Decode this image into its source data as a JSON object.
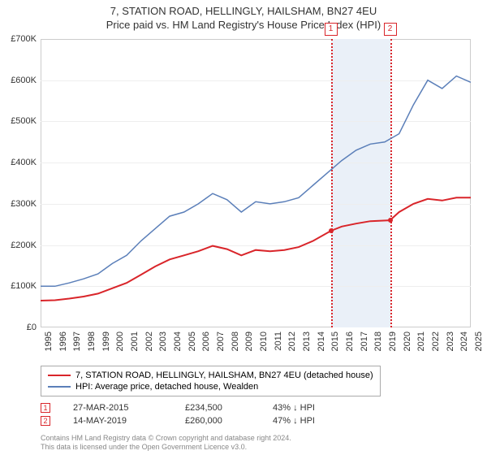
{
  "title_line1": "7, STATION ROAD, HELLINGLY, HAILSHAM, BN27 4EU",
  "title_line2": "Price paid vs. HM Land Registry's House Price Index (HPI)",
  "chart": {
    "type": "line",
    "background_color": "#ffffff",
    "grid_color": "#eeeeee",
    "border_color": "#cccccc",
    "x": {
      "min": 1995,
      "max": 2025,
      "ticks": [
        1995,
        1996,
        1997,
        1998,
        1999,
        2000,
        2001,
        2002,
        2003,
        2004,
        2005,
        2006,
        2007,
        2008,
        2009,
        2010,
        2011,
        2012,
        2013,
        2014,
        2015,
        2016,
        2017,
        2018,
        2019,
        2020,
        2021,
        2022,
        2023,
        2024,
        2025
      ]
    },
    "y": {
      "min": 0,
      "max": 700000,
      "ticks": [
        0,
        100000,
        200000,
        300000,
        400000,
        500000,
        600000,
        700000
      ],
      "tick_labels": [
        "£0",
        "£100K",
        "£200K",
        "£300K",
        "£400K",
        "£500K",
        "£600K",
        "£700K"
      ]
    },
    "band": {
      "from": 2015.24,
      "to": 2019.37,
      "color": "#eaf0f8"
    },
    "vlines": [
      {
        "x": 2015.24,
        "color": "#d9252a",
        "label": "1"
      },
      {
        "x": 2019.37,
        "color": "#d9252a",
        "label": "2"
      }
    ],
    "series": [
      {
        "name": "7, STATION ROAD, HELLINGLY, HAILSHAM, BN27 4EU (detached house)",
        "color": "#d9252a",
        "line_width": 2,
        "data": [
          [
            1995,
            65000
          ],
          [
            1996,
            66000
          ],
          [
            1997,
            70000
          ],
          [
            1998,
            75000
          ],
          [
            1999,
            82000
          ],
          [
            2000,
            95000
          ],
          [
            2001,
            108000
          ],
          [
            2002,
            128000
          ],
          [
            2003,
            148000
          ],
          [
            2004,
            165000
          ],
          [
            2005,
            175000
          ],
          [
            2006,
            185000
          ],
          [
            2007,
            198000
          ],
          [
            2008,
            190000
          ],
          [
            2009,
            175000
          ],
          [
            2010,
            188000
          ],
          [
            2011,
            185000
          ],
          [
            2012,
            188000
          ],
          [
            2013,
            195000
          ],
          [
            2014,
            210000
          ],
          [
            2015.24,
            234500
          ],
          [
            2016,
            245000
          ],
          [
            2017,
            252000
          ],
          [
            2018,
            258000
          ],
          [
            2019.37,
            260000
          ],
          [
            2020,
            280000
          ],
          [
            2021,
            300000
          ],
          [
            2022,
            312000
          ],
          [
            2023,
            308000
          ],
          [
            2024,
            315000
          ],
          [
            2025,
            315000
          ]
        ],
        "markers": [
          {
            "x": 2015.24,
            "y": 234500
          },
          {
            "x": 2019.37,
            "y": 260000
          }
        ]
      },
      {
        "name": "HPI: Average price, detached house, Wealden",
        "color": "#5b7fb9",
        "line_width": 1.5,
        "data": [
          [
            1995,
            100000
          ],
          [
            1996,
            100000
          ],
          [
            1997,
            108000
          ],
          [
            1998,
            118000
          ],
          [
            1999,
            130000
          ],
          [
            2000,
            155000
          ],
          [
            2001,
            175000
          ],
          [
            2002,
            210000
          ],
          [
            2003,
            240000
          ],
          [
            2004,
            270000
          ],
          [
            2005,
            280000
          ],
          [
            2006,
            300000
          ],
          [
            2007,
            325000
          ],
          [
            2008,
            310000
          ],
          [
            2009,
            280000
          ],
          [
            2010,
            305000
          ],
          [
            2011,
            300000
          ],
          [
            2012,
            305000
          ],
          [
            2013,
            315000
          ],
          [
            2014,
            345000
          ],
          [
            2015,
            375000
          ],
          [
            2016,
            405000
          ],
          [
            2017,
            430000
          ],
          [
            2018,
            445000
          ],
          [
            2019,
            450000
          ],
          [
            2020,
            470000
          ],
          [
            2021,
            540000
          ],
          [
            2022,
            600000
          ],
          [
            2023,
            580000
          ],
          [
            2024,
            610000
          ],
          [
            2025,
            595000
          ]
        ]
      }
    ]
  },
  "legend": [
    {
      "type": "line",
      "color": "#d9252a",
      "label": "7, STATION ROAD, HELLINGLY, HAILSHAM, BN27 4EU (detached house)"
    },
    {
      "type": "line",
      "color": "#5b7fb9",
      "label": "HPI: Average price, detached house, Wealden"
    }
  ],
  "transactions": [
    {
      "marker": "1",
      "marker_color": "#d9252a",
      "date": "27-MAR-2015",
      "price": "£234,500",
      "diff": "43% ↓ HPI"
    },
    {
      "marker": "2",
      "marker_color": "#d9252a",
      "date": "14-MAY-2019",
      "price": "£260,000",
      "diff": "47% ↓ HPI"
    }
  ],
  "footer_line1": "Contains HM Land Registry data © Crown copyright and database right 2024.",
  "footer_line2": "This data is licensed under the Open Government Licence v3.0."
}
